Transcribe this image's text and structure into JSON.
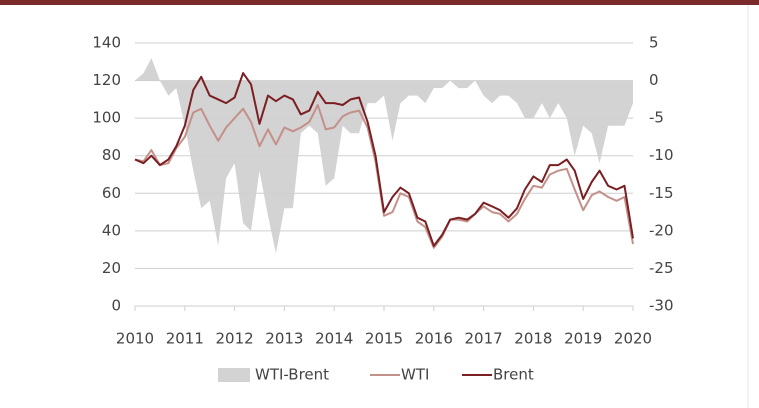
{
  "chart_data": {
    "type": "line",
    "x": [
      2010,
      2010.17,
      2010.33,
      2010.5,
      2010.67,
      2010.83,
      2011,
      2011.17,
      2011.33,
      2011.5,
      2011.67,
      2011.83,
      2012,
      2012.17,
      2012.33,
      2012.5,
      2012.67,
      2012.83,
      2013,
      2013.17,
      2013.33,
      2013.5,
      2013.67,
      2013.83,
      2014,
      2014.17,
      2014.33,
      2014.5,
      2014.67,
      2014.83,
      2015,
      2015.17,
      2015.33,
      2015.5,
      2015.67,
      2015.83,
      2016,
      2016.17,
      2016.33,
      2016.5,
      2016.67,
      2016.83,
      2017,
      2017.17,
      2017.33,
      2017.5,
      2017.67,
      2017.83,
      2018,
      2018.17,
      2018.33,
      2018.5,
      2018.67,
      2018.83,
      2019,
      2019.17,
      2019.33,
      2019.5,
      2019.67,
      2019.83,
      2020
    ],
    "xlim": [
      2010,
      2020
    ],
    "xticks": [
      2010,
      2011,
      2012,
      2013,
      2014,
      2015,
      2016,
      2017,
      2018,
      2019,
      2020
    ],
    "ylim": [
      0,
      140
    ],
    "yticks": [
      0,
      20,
      40,
      60,
      80,
      100,
      120,
      140
    ],
    "y2lim": [
      -30,
      5
    ],
    "y2ticks": [
      -30,
      -25,
      -20,
      -15,
      -10,
      -5,
      0,
      5
    ],
    "grid": true,
    "legend": "bottom",
    "series": [
      {
        "name": "WTI-Brent",
        "color": "#d3d3d3",
        "axis": "y2",
        "values": [
          0,
          1,
          3,
          0,
          -2,
          -1,
          -6,
          -12,
          -17,
          -16,
          -22,
          -13,
          -11,
          -19,
          -20,
          -12,
          -18,
          -23,
          -17,
          -17,
          -7,
          -6,
          -7,
          -14,
          -13,
          -6,
          -7,
          -7,
          -3,
          -3,
          -2,
          -8,
          -3,
          -2,
          -2,
          -3,
          -1,
          -1,
          0,
          -1,
          -1,
          0,
          -2,
          -3,
          -2,
          -2,
          -3,
          -5,
          -5,
          -3,
          -5,
          -3,
          -5,
          -10,
          -6,
          -7,
          -11,
          -6,
          -6,
          -6,
          -3
        ]
      },
      {
        "name": "WTI",
        "color": "#c4908a",
        "values": [
          78,
          77,
          83,
          75,
          76,
          84,
          90,
          103,
          105,
          96,
          88,
          95,
          100,
          105,
          98,
          85,
          94,
          86,
          95,
          93,
          95,
          98,
          107,
          94,
          95,
          101,
          103,
          104,
          95,
          77,
          48,
          50,
          60,
          58,
          45,
          42,
          31,
          37,
          46,
          46,
          45,
          49,
          53,
          50,
          49,
          45,
          49,
          57,
          64,
          63,
          70,
          72,
          73,
          62,
          51,
          59,
          61,
          58,
          56,
          58,
          33
        ]
      },
      {
        "name": "Brent",
        "color": "#7a1f22",
        "values": [
          78,
          76,
          80,
          75,
          78,
          85,
          96,
          115,
          122,
          112,
          110,
          108,
          111,
          124,
          118,
          97,
          112,
          109,
          112,
          110,
          102,
          104,
          114,
          108,
          108,
          107,
          110,
          111,
          98,
          80,
          50,
          58,
          63,
          60,
          47,
          45,
          32,
          38,
          46,
          47,
          46,
          49,
          55,
          53,
          51,
          47,
          52,
          62,
          69,
          66,
          75,
          75,
          78,
          72,
          57,
          66,
          72,
          64,
          62,
          64,
          36
        ]
      }
    ]
  }
}
